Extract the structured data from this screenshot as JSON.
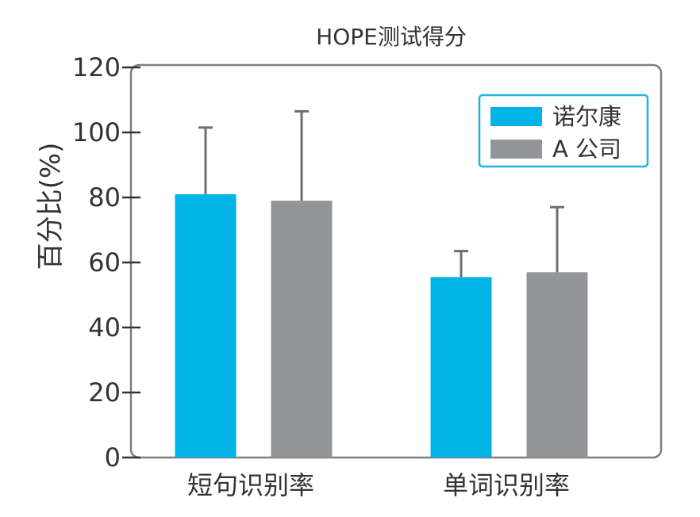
{
  "chart_data": {
    "type": "bar",
    "title": "HOPE测试得分",
    "ylabel": "百分比(%)",
    "xlabel": "",
    "ylim": [
      0,
      120
    ],
    "yticks": [
      0,
      20,
      40,
      60,
      80,
      100,
      120
    ],
    "categories": [
      "短句识别率",
      "单词识别率"
    ],
    "series": [
      {
        "name": "诺尔康",
        "color": "#00b4e8",
        "values": [
          81,
          55.5
        ],
        "errors": [
          20.5,
          8
        ]
      },
      {
        "name": "A 公司",
        "color": "#939598",
        "values": [
          79,
          57
        ],
        "errors": [
          27.5,
          20
        ]
      }
    ],
    "legend": "top-right",
    "grid": false,
    "frame_color": "#7f7f7f",
    "legend_border_color": "#1fb3e3",
    "error_bar_color": "#6d6e71"
  }
}
